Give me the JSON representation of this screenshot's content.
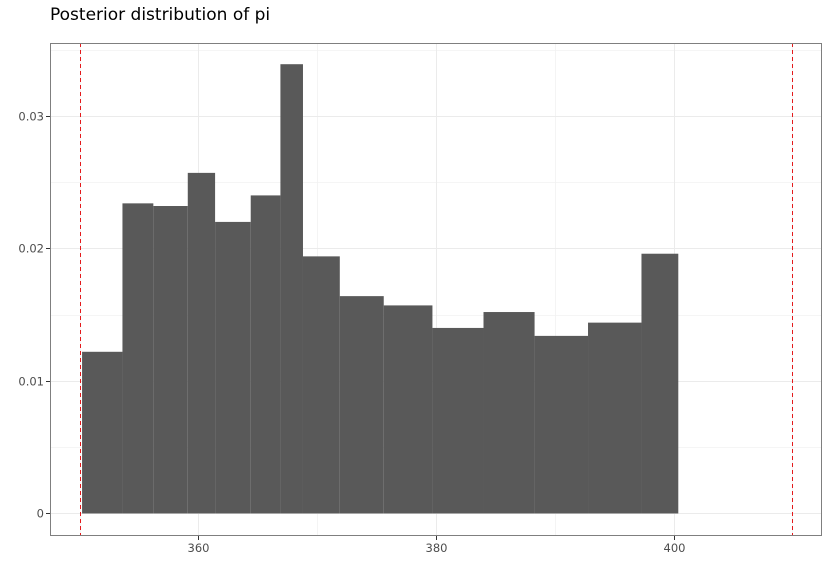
{
  "chart_data": {
    "type": "bar",
    "title": "Posterior distribution of pi",
    "xlabel": "",
    "ylabel": "",
    "xlim": [
      347.5,
      412.5
    ],
    "ylim": [
      -0.0017,
      0.0355
    ],
    "x_ticks": [
      {
        "value": 360,
        "label": "360"
      },
      {
        "value": 380,
        "label": "380"
      },
      {
        "value": 400,
        "label": "400"
      }
    ],
    "y_ticks": [
      {
        "value": 0,
        "label": "0"
      },
      {
        "value": 0.01,
        "label": "0.01"
      },
      {
        "value": 0.02,
        "label": "0.02"
      },
      {
        "value": 0.03,
        "label": "0.03"
      }
    ],
    "bins": [
      {
        "x0": 350.2,
        "x1": 353.6,
        "density": 0.0122
      },
      {
        "x0": 353.6,
        "x1": 356.2,
        "density": 0.0234
      },
      {
        "x0": 356.2,
        "x1": 359.1,
        "density": 0.0232
      },
      {
        "x0": 359.1,
        "x1": 361.4,
        "density": 0.0257
      },
      {
        "x0": 361.4,
        "x1": 364.4,
        "density": 0.022
      },
      {
        "x0": 364.4,
        "x1": 366.9,
        "density": 0.024
      },
      {
        "x0": 366.9,
        "x1": 368.8,
        "density": 0.0339
      },
      {
        "x0": 368.8,
        "x1": 371.9,
        "density": 0.0194
      },
      {
        "x0": 371.9,
        "x1": 375.6,
        "density": 0.0164
      },
      {
        "x0": 375.6,
        "x1": 379.7,
        "density": 0.0157
      },
      {
        "x0": 379.7,
        "x1": 384.0,
        "density": 0.014
      },
      {
        "x0": 384.0,
        "x1": 388.3,
        "density": 0.0152
      },
      {
        "x0": 388.3,
        "x1": 392.8,
        "density": 0.0134
      },
      {
        "x0": 392.8,
        "x1": 397.3,
        "density": 0.0144
      },
      {
        "x0": 397.3,
        "x1": 400.4,
        "density": 0.0196
      }
    ],
    "vlines": [
      {
        "x": 350,
        "color": "#e41a1c",
        "style": "dashed"
      },
      {
        "x": 410,
        "color": "#e41a1c",
        "style": "dashed"
      }
    ],
    "bar_color": "#595959",
    "grid": true,
    "legend": "none"
  }
}
